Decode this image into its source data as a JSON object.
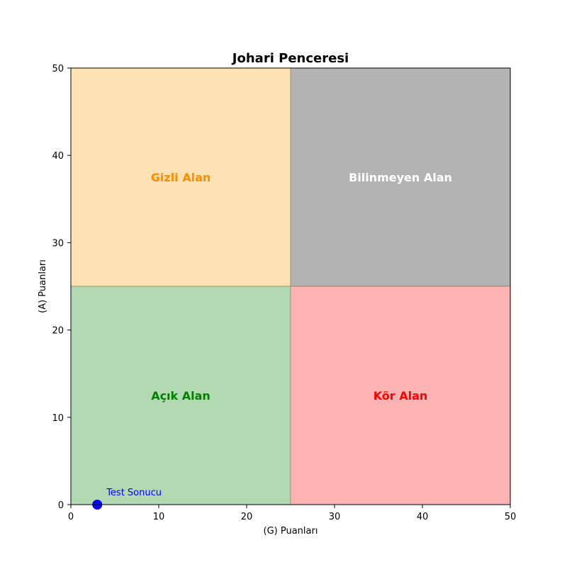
{
  "chart_data": {
    "type": "scatter",
    "title": "Johari Penceresi",
    "xlabel": "(G) Puanları",
    "ylabel": "(A) Puanları",
    "xlim": [
      0,
      50
    ],
    "ylim": [
      0,
      50
    ],
    "xticks": [
      "0",
      "10",
      "20",
      "30",
      "40",
      "50"
    ],
    "yticks": [
      "0",
      "10",
      "20",
      "30",
      "40",
      "50"
    ],
    "grid": false,
    "regions": [
      {
        "label": "Gizli Alan",
        "x": [
          0,
          25
        ],
        "y": [
          25,
          50
        ],
        "fill": "#ffe2b3",
        "text_color": "#ff8c00"
      },
      {
        "label": "Bilinmeyen Alan",
        "x": [
          25,
          50
        ],
        "y": [
          25,
          50
        ],
        "fill": "#b3b3b3",
        "text_color": "#ffffff"
      },
      {
        "label": "Açık Alan",
        "x": [
          0,
          25
        ],
        "y": [
          0,
          25
        ],
        "fill": "#b3d9b3",
        "text_color": "#008000"
      },
      {
        "label": "Kör Alan",
        "x": [
          25,
          50
        ],
        "y": [
          0,
          25
        ],
        "fill": "#ffb3b3",
        "text_color": "#ff0000"
      }
    ],
    "points": [
      {
        "label": "Test Sonucu",
        "x": 3,
        "y": 0,
        "color": "#0000ff"
      }
    ]
  }
}
